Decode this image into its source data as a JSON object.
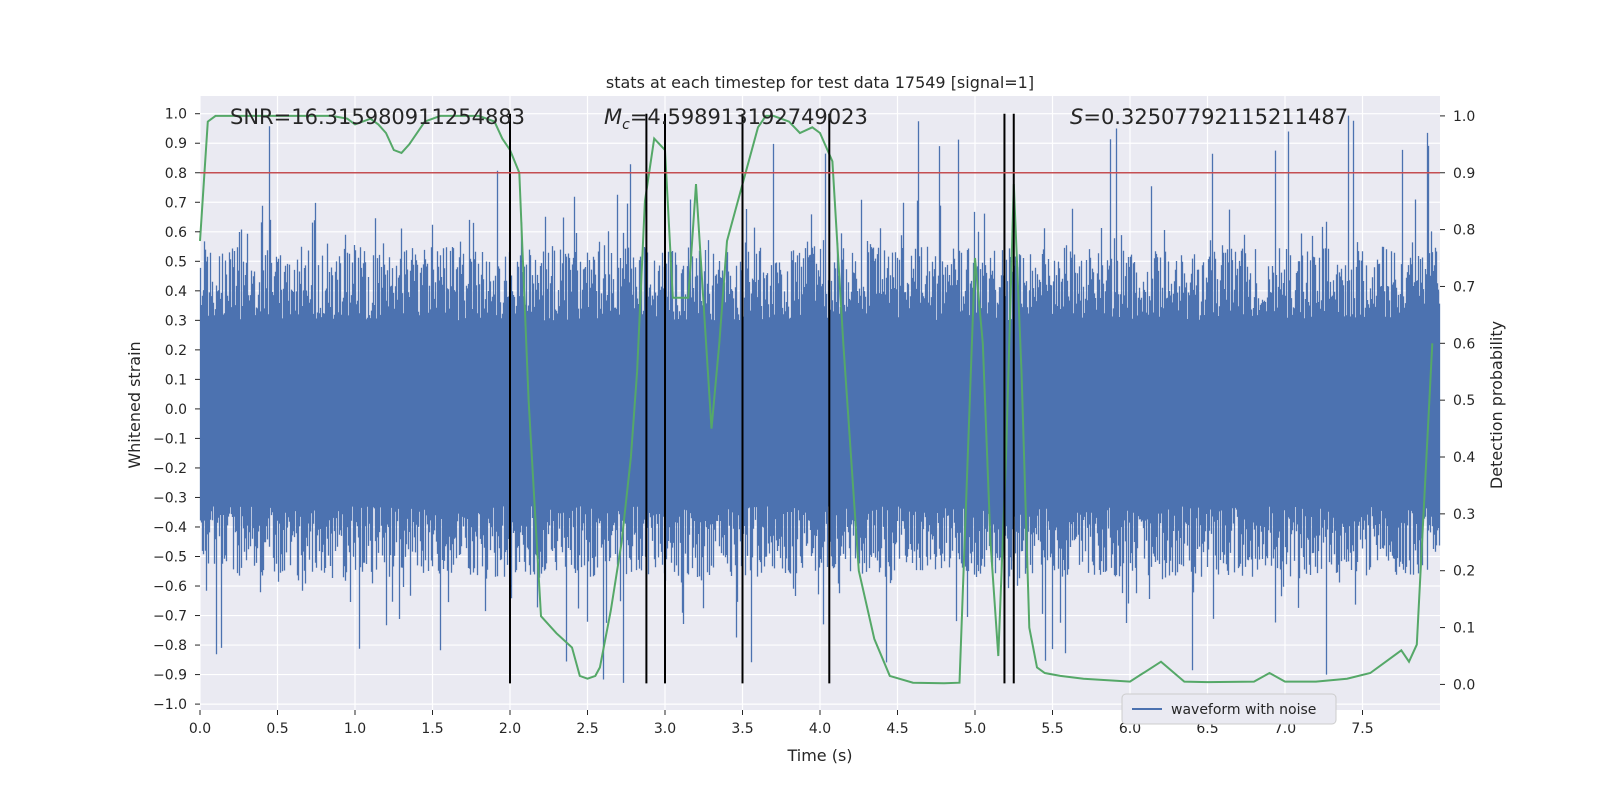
{
  "chart_data": {
    "type": "line",
    "title": "stats at each timestep for test data 17549 [signal=1]",
    "xlabel": "Time (s)",
    "ylabel_left": "Whitened strain",
    "ylabel_right": "Detection probability",
    "xlim": [
      0.0,
      8.0
    ],
    "ylim_left": [
      -1.02,
      1.06
    ],
    "ylim_right": [
      -0.045,
      1.035
    ],
    "x_ticks": [
      "0.0",
      "0.5",
      "1.0",
      "1.5",
      "2.0",
      "2.5",
      "3.0",
      "3.5",
      "4.0",
      "4.5",
      "5.0",
      "5.5",
      "6.0",
      "6.5",
      "7.0",
      "7.5"
    ],
    "y_ticks_left": [
      "1.0",
      "0.9",
      "0.8",
      "0.7",
      "0.6",
      "0.5",
      "0.4",
      "0.3",
      "0.2",
      "0.1",
      "0.0",
      "−0.1",
      "−0.2",
      "−0.3",
      "−0.4",
      "−0.5",
      "−0.6",
      "−0.7",
      "−0.8",
      "−0.9",
      "−1.0"
    ],
    "y_ticks_right": [
      "1.0",
      "0.9",
      "0.8",
      "0.7",
      "0.6",
      "0.5",
      "0.4",
      "0.3",
      "0.2",
      "0.1",
      "0.0"
    ],
    "annotations": {
      "snr": "SNR=16.315980911254883",
      "mc_symbol": "M",
      "mc_sub": "c",
      "mc_value": "=4.598913192749023",
      "s_symbol": "S",
      "s_value": "=0.32507792115211487"
    },
    "threshold": {
      "value_right_axis": 0.9,
      "color": "#c44e52"
    },
    "event_lines": [
      2.0,
      2.88,
      3.0,
      3.5,
      4.06,
      5.19,
      5.25
    ],
    "event_line_range": [
      -0.93,
      1.0
    ],
    "waveform": {
      "name": "waveform with noise",
      "color": "#4c72b0",
      "typical_max": 0.55,
      "peak_max": 1.0,
      "min_peak": -0.93
    },
    "detection_probability": {
      "color": "#55a868",
      "x": [
        0.0,
        0.05,
        0.1,
        0.25,
        0.5,
        0.85,
        0.95,
        1.0,
        1.1,
        1.15,
        1.2,
        1.25,
        1.3,
        1.35,
        1.45,
        1.55,
        1.65,
        1.8,
        1.9,
        1.95,
        2.0,
        2.06,
        2.12,
        2.2,
        2.3,
        2.4,
        2.45,
        2.5,
        2.55,
        2.58,
        2.65,
        2.72,
        2.78,
        2.82,
        2.87,
        2.93,
        3.0,
        3.05,
        3.1,
        3.15,
        3.2,
        3.3,
        3.35,
        3.4,
        3.5,
        3.6,
        3.65,
        3.7,
        3.8,
        3.87,
        3.95,
        4.0,
        4.08,
        4.15,
        4.25,
        4.35,
        4.45,
        4.6,
        4.8,
        4.9,
        5.0,
        5.05,
        5.1,
        5.15,
        5.2,
        5.25,
        5.3,
        5.35,
        5.4,
        5.45,
        5.55,
        5.7,
        6.0,
        6.2,
        6.35,
        6.5,
        6.8,
        6.9,
        7.0,
        7.2,
        7.4,
        7.55,
        7.65,
        7.75,
        7.8,
        7.85,
        7.95
      ],
      "y": [
        0.78,
        0.99,
        1.0,
        1.0,
        1.0,
        1.0,
        0.995,
        0.985,
        0.995,
        0.985,
        0.97,
        0.94,
        0.935,
        0.95,
        0.99,
        1.0,
        1.0,
        1.0,
        0.99,
        0.96,
        0.94,
        0.9,
        0.5,
        0.12,
        0.09,
        0.065,
        0.015,
        0.01,
        0.015,
        0.03,
        0.13,
        0.25,
        0.4,
        0.55,
        0.85,
        0.96,
        0.94,
        0.68,
        0.68,
        0.68,
        0.88,
        0.45,
        0.6,
        0.78,
        0.88,
        0.98,
        1.0,
        1.0,
        0.99,
        0.97,
        0.98,
        0.97,
        0.92,
        0.6,
        0.2,
        0.08,
        0.015,
        0.003,
        0.002,
        0.003,
        0.75,
        0.6,
        0.25,
        0.05,
        0.4,
        0.88,
        0.55,
        0.1,
        0.03,
        0.02,
        0.015,
        0.01,
        0.005,
        0.04,
        0.005,
        0.004,
        0.005,
        0.02,
        0.005,
        0.005,
        0.01,
        0.02,
        0.04,
        0.06,
        0.04,
        0.07,
        0.6
      ]
    }
  }
}
